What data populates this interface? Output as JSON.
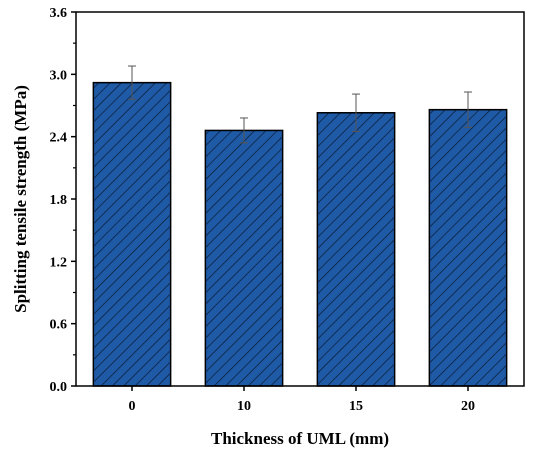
{
  "chart_data": {
    "type": "bar",
    "categories": [
      "0",
      "10",
      "15",
      "20"
    ],
    "values": [
      2.92,
      2.46,
      2.63,
      2.66
    ],
    "errors": [
      0.16,
      0.12,
      0.18,
      0.17
    ],
    "xlabel": "Thickness of UML (mm)",
    "ylabel": "Splitting tensile strength (MPa)",
    "ylim": [
      0,
      3.6
    ],
    "yticks": [
      "0.0",
      "0.6",
      "1.2",
      "1.8",
      "2.4",
      "3.0",
      "3.6"
    ],
    "bar_color": "#1f5aa6",
    "hatch": "diagonal",
    "grid": false,
    "legend": "none"
  }
}
